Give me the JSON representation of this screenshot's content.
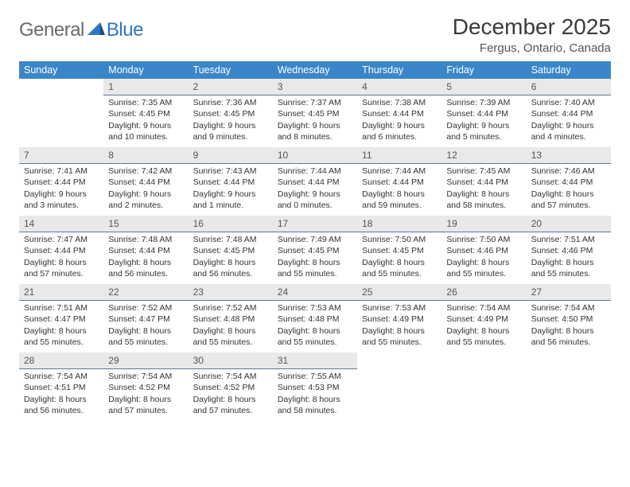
{
  "logo": {
    "word1": "General",
    "word2": "Blue"
  },
  "title": "December 2025",
  "location": "Fergus, Ontario, Canada",
  "colors": {
    "header_bg": "#3a86c8",
    "header_fg": "#ffffff",
    "daynum_bg": "#e9e9e9",
    "divider": "#5a7a9a",
    "logo_gray": "#6a6a6a",
    "logo_blue": "#2f76c2"
  },
  "weekdays": [
    "Sunday",
    "Monday",
    "Tuesday",
    "Wednesday",
    "Thursday",
    "Friday",
    "Saturday"
  ],
  "weeks": [
    [
      {
        "n": "",
        "sr": "",
        "ss": "",
        "dl": ""
      },
      {
        "n": "1",
        "sr": "Sunrise: 7:35 AM",
        "ss": "Sunset: 4:45 PM",
        "dl": "Daylight: 9 hours and 10 minutes."
      },
      {
        "n": "2",
        "sr": "Sunrise: 7:36 AM",
        "ss": "Sunset: 4:45 PM",
        "dl": "Daylight: 9 hours and 9 minutes."
      },
      {
        "n": "3",
        "sr": "Sunrise: 7:37 AM",
        "ss": "Sunset: 4:45 PM",
        "dl": "Daylight: 9 hours and 8 minutes."
      },
      {
        "n": "4",
        "sr": "Sunrise: 7:38 AM",
        "ss": "Sunset: 4:44 PM",
        "dl": "Daylight: 9 hours and 6 minutes."
      },
      {
        "n": "5",
        "sr": "Sunrise: 7:39 AM",
        "ss": "Sunset: 4:44 PM",
        "dl": "Daylight: 9 hours and 5 minutes."
      },
      {
        "n": "6",
        "sr": "Sunrise: 7:40 AM",
        "ss": "Sunset: 4:44 PM",
        "dl": "Daylight: 9 hours and 4 minutes."
      }
    ],
    [
      {
        "n": "7",
        "sr": "Sunrise: 7:41 AM",
        "ss": "Sunset: 4:44 PM",
        "dl": "Daylight: 9 hours and 3 minutes."
      },
      {
        "n": "8",
        "sr": "Sunrise: 7:42 AM",
        "ss": "Sunset: 4:44 PM",
        "dl": "Daylight: 9 hours and 2 minutes."
      },
      {
        "n": "9",
        "sr": "Sunrise: 7:43 AM",
        "ss": "Sunset: 4:44 PM",
        "dl": "Daylight: 9 hours and 1 minute."
      },
      {
        "n": "10",
        "sr": "Sunrise: 7:44 AM",
        "ss": "Sunset: 4:44 PM",
        "dl": "Daylight: 9 hours and 0 minutes."
      },
      {
        "n": "11",
        "sr": "Sunrise: 7:44 AM",
        "ss": "Sunset: 4:44 PM",
        "dl": "Daylight: 8 hours and 59 minutes."
      },
      {
        "n": "12",
        "sr": "Sunrise: 7:45 AM",
        "ss": "Sunset: 4:44 PM",
        "dl": "Daylight: 8 hours and 58 minutes."
      },
      {
        "n": "13",
        "sr": "Sunrise: 7:46 AM",
        "ss": "Sunset: 4:44 PM",
        "dl": "Daylight: 8 hours and 57 minutes."
      }
    ],
    [
      {
        "n": "14",
        "sr": "Sunrise: 7:47 AM",
        "ss": "Sunset: 4:44 PM",
        "dl": "Daylight: 8 hours and 57 minutes."
      },
      {
        "n": "15",
        "sr": "Sunrise: 7:48 AM",
        "ss": "Sunset: 4:44 PM",
        "dl": "Daylight: 8 hours and 56 minutes."
      },
      {
        "n": "16",
        "sr": "Sunrise: 7:48 AM",
        "ss": "Sunset: 4:45 PM",
        "dl": "Daylight: 8 hours and 56 minutes."
      },
      {
        "n": "17",
        "sr": "Sunrise: 7:49 AM",
        "ss": "Sunset: 4:45 PM",
        "dl": "Daylight: 8 hours and 55 minutes."
      },
      {
        "n": "18",
        "sr": "Sunrise: 7:50 AM",
        "ss": "Sunset: 4:45 PM",
        "dl": "Daylight: 8 hours and 55 minutes."
      },
      {
        "n": "19",
        "sr": "Sunrise: 7:50 AM",
        "ss": "Sunset: 4:46 PM",
        "dl": "Daylight: 8 hours and 55 minutes."
      },
      {
        "n": "20",
        "sr": "Sunrise: 7:51 AM",
        "ss": "Sunset: 4:46 PM",
        "dl": "Daylight: 8 hours and 55 minutes."
      }
    ],
    [
      {
        "n": "21",
        "sr": "Sunrise: 7:51 AM",
        "ss": "Sunset: 4:47 PM",
        "dl": "Daylight: 8 hours and 55 minutes."
      },
      {
        "n": "22",
        "sr": "Sunrise: 7:52 AM",
        "ss": "Sunset: 4:47 PM",
        "dl": "Daylight: 8 hours and 55 minutes."
      },
      {
        "n": "23",
        "sr": "Sunrise: 7:52 AM",
        "ss": "Sunset: 4:48 PM",
        "dl": "Daylight: 8 hours and 55 minutes."
      },
      {
        "n": "24",
        "sr": "Sunrise: 7:53 AM",
        "ss": "Sunset: 4:48 PM",
        "dl": "Daylight: 8 hours and 55 minutes."
      },
      {
        "n": "25",
        "sr": "Sunrise: 7:53 AM",
        "ss": "Sunset: 4:49 PM",
        "dl": "Daylight: 8 hours and 55 minutes."
      },
      {
        "n": "26",
        "sr": "Sunrise: 7:54 AM",
        "ss": "Sunset: 4:49 PM",
        "dl": "Daylight: 8 hours and 55 minutes."
      },
      {
        "n": "27",
        "sr": "Sunrise: 7:54 AM",
        "ss": "Sunset: 4:50 PM",
        "dl": "Daylight: 8 hours and 56 minutes."
      }
    ],
    [
      {
        "n": "28",
        "sr": "Sunrise: 7:54 AM",
        "ss": "Sunset: 4:51 PM",
        "dl": "Daylight: 8 hours and 56 minutes."
      },
      {
        "n": "29",
        "sr": "Sunrise: 7:54 AM",
        "ss": "Sunset: 4:52 PM",
        "dl": "Daylight: 8 hours and 57 minutes."
      },
      {
        "n": "30",
        "sr": "Sunrise: 7:54 AM",
        "ss": "Sunset: 4:52 PM",
        "dl": "Daylight: 8 hours and 57 minutes."
      },
      {
        "n": "31",
        "sr": "Sunrise: 7:55 AM",
        "ss": "Sunset: 4:53 PM",
        "dl": "Daylight: 8 hours and 58 minutes."
      },
      {
        "n": "",
        "sr": "",
        "ss": "",
        "dl": ""
      },
      {
        "n": "",
        "sr": "",
        "ss": "",
        "dl": ""
      },
      {
        "n": "",
        "sr": "",
        "ss": "",
        "dl": ""
      }
    ]
  ]
}
